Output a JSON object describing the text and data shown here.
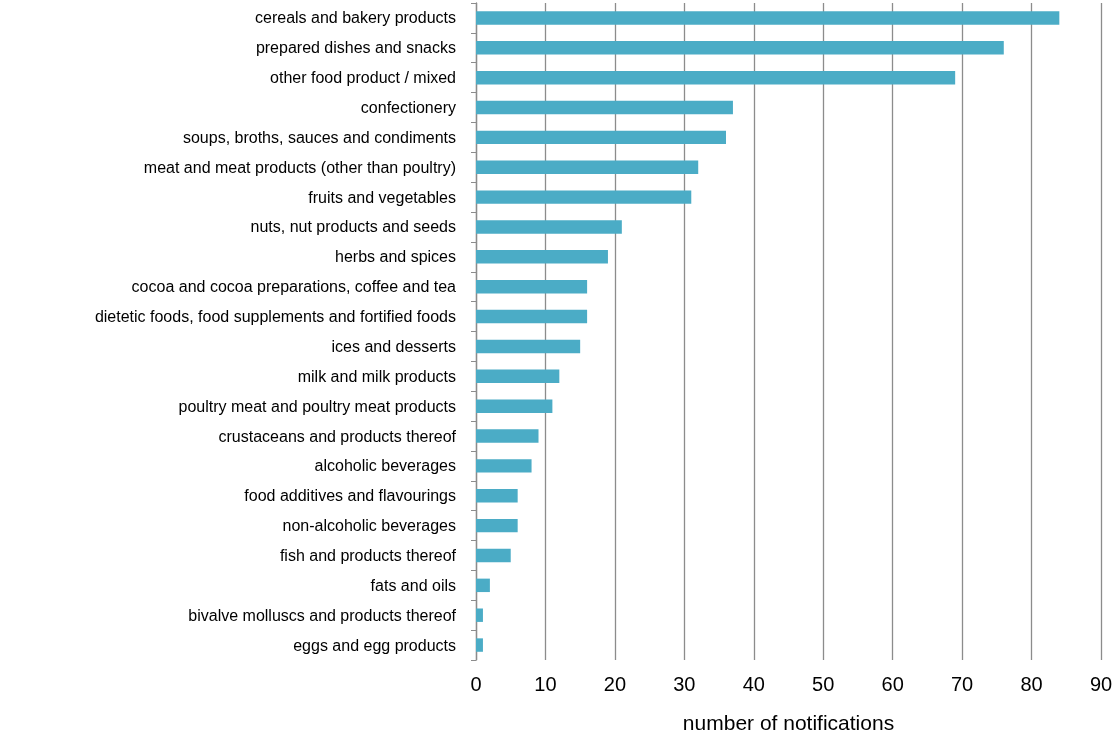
{
  "chart_data": {
    "type": "bar",
    "orientation": "horizontal",
    "xlabel": "number of notifications",
    "categories": [
      "cereals and bakery products",
      "prepared dishes and snacks",
      "other food product / mixed",
      "confectionery",
      "soups, broths, sauces and condiments",
      "meat and meat products (other than poultry)",
      "fruits and vegetables",
      "nuts, nut products and seeds",
      "herbs and spices",
      "cocoa and cocoa preparations, coffee and tea",
      "dietetic foods, food supplements and fortified foods",
      "ices and desserts",
      "milk and milk products",
      "poultry meat and poultry meat products",
      "crustaceans and products thereof",
      "alcoholic beverages",
      "food additives and flavourings",
      "non-alcoholic beverages",
      "fish and products thereof",
      "fats and oils",
      "bivalve molluscs and products thereof",
      "eggs and egg products"
    ],
    "values": [
      84,
      76,
      69,
      37,
      36,
      32,
      31,
      21,
      19,
      16,
      16,
      15,
      12,
      11,
      9,
      8,
      6,
      6,
      5,
      2,
      1,
      1
    ],
    "color": "#4bacc6",
    "xlim": [
      0,
      90
    ],
    "xticks": [
      0,
      10,
      20,
      30,
      40,
      50,
      60,
      70,
      80,
      90
    ],
    "grid": "x"
  }
}
